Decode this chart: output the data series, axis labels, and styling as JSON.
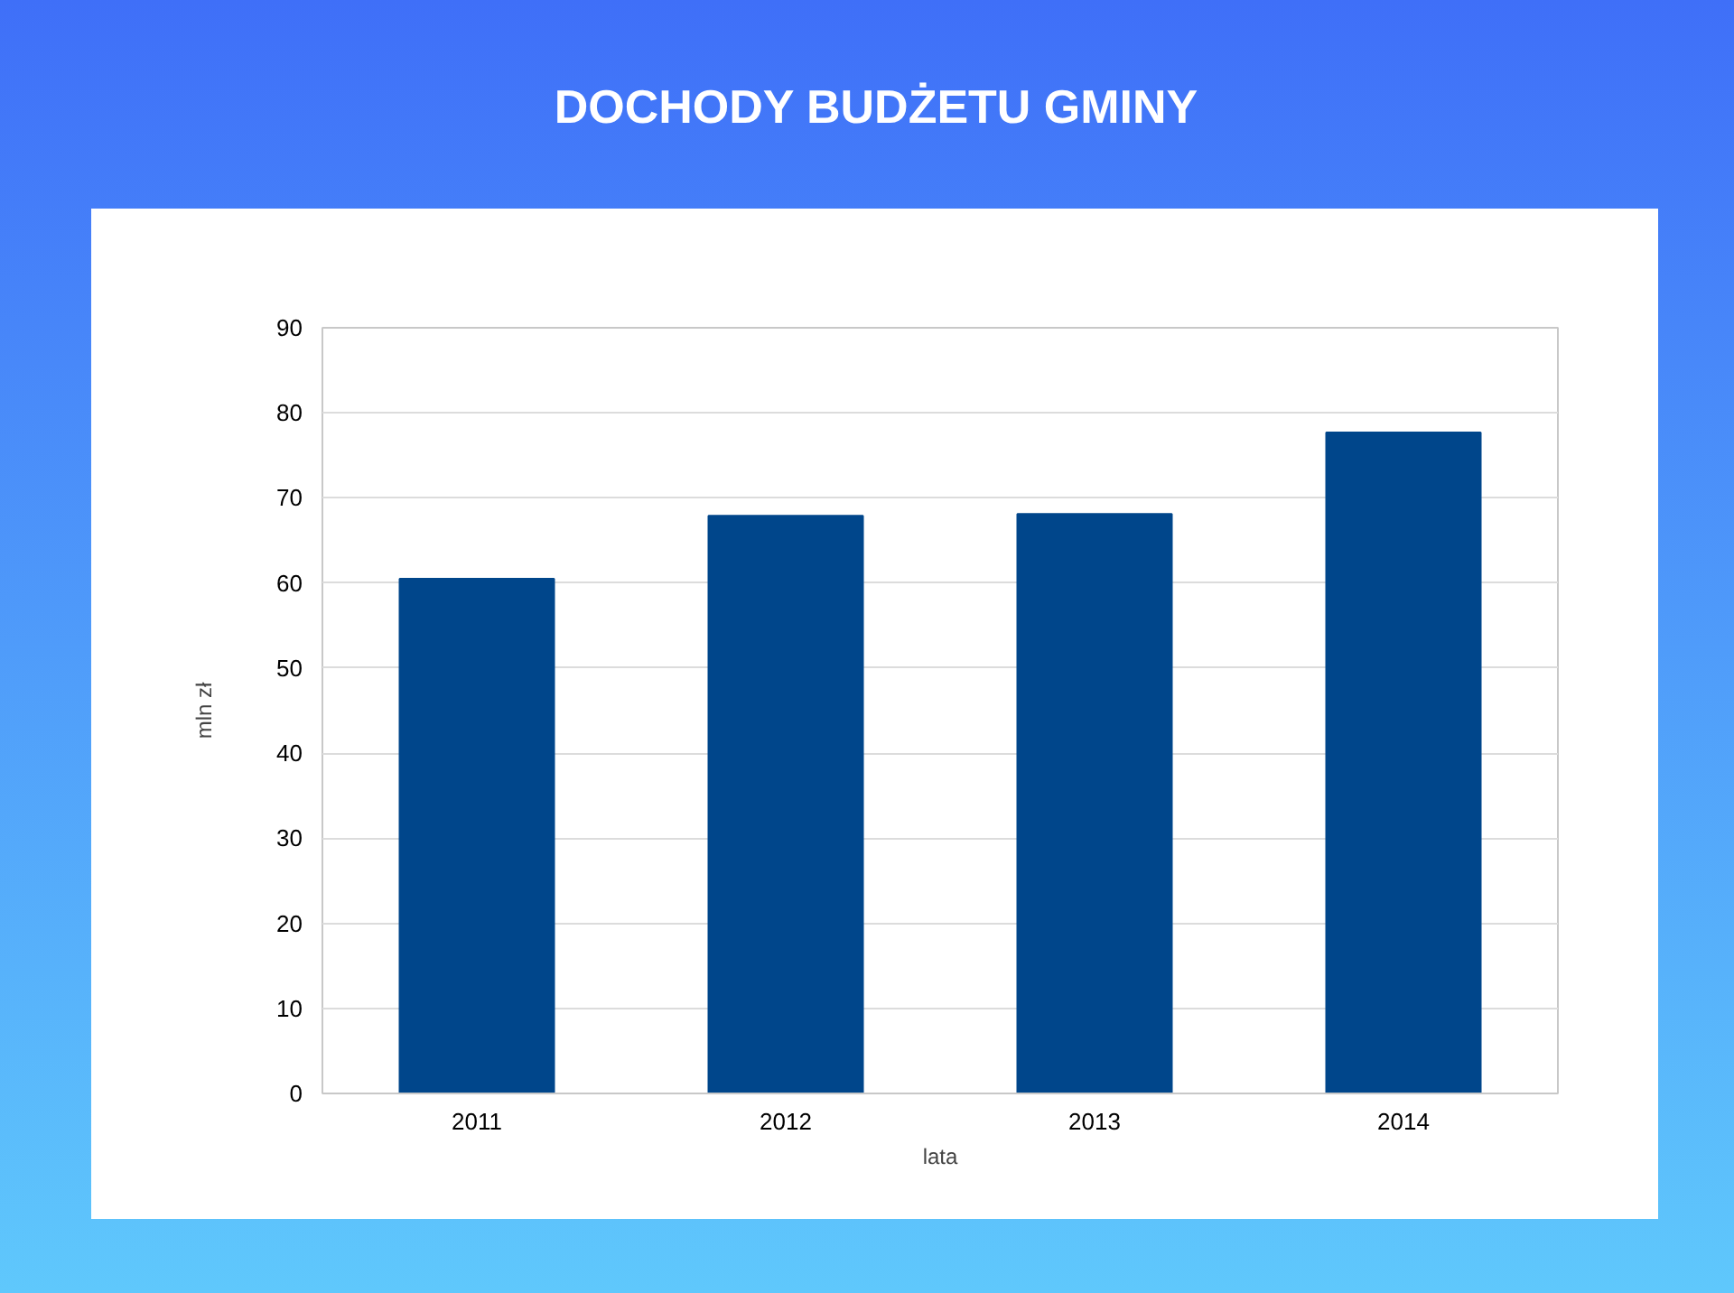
{
  "chart_data": {
    "type": "bar",
    "title": "DOCHODY BUDŻETU GMINY",
    "xlabel": "lata",
    "ylabel": "mln zł",
    "categories": [
      "2011",
      "2012",
      "2013",
      "2014"
    ],
    "values": [
      60.5,
      67.9,
      68.1,
      77.7
    ],
    "color": "#00468b",
    "ylim": [
      0,
      90
    ],
    "yticks": [
      0,
      10,
      20,
      30,
      40,
      50,
      60,
      70,
      80,
      90
    ],
    "grid": "y"
  }
}
